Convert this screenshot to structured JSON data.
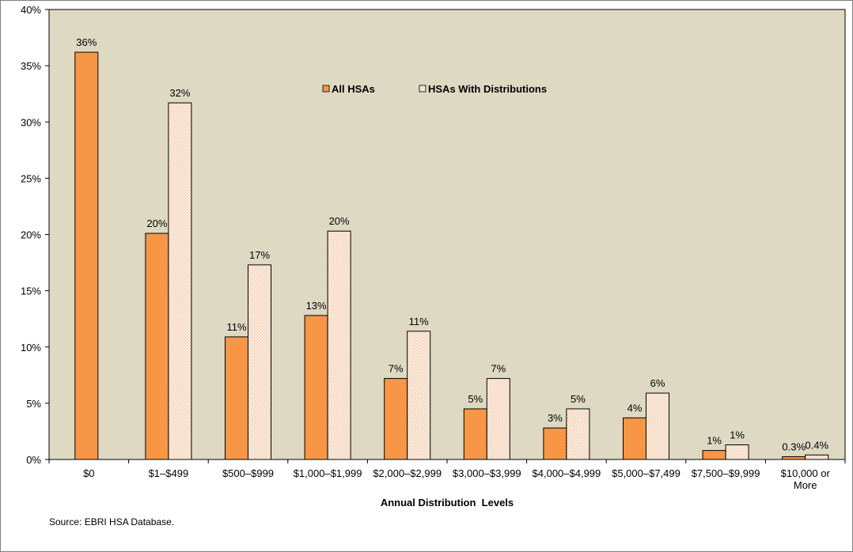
{
  "chart_data": {
    "type": "bar",
    "xlabel": "Annual Distribution  Levels",
    "ylabel": "",
    "ylim": [
      0,
      40
    ],
    "yticks": [
      "0%",
      "5%",
      "10%",
      "15%",
      "20%",
      "25%",
      "30%",
      "35%",
      "40%"
    ],
    "categories": [
      [
        "$0"
      ],
      [
        "$1–$499"
      ],
      [
        "$500–$999"
      ],
      [
        "$1,000–$1,999"
      ],
      [
        "$2,000–$2,999"
      ],
      [
        "$3,000–$3,999"
      ],
      [
        "$4,000–$4,999"
      ],
      [
        "$5,000–$7,499"
      ],
      [
        "$7,500–$9,999"
      ],
      [
        "$10,000 or",
        "More"
      ]
    ],
    "series": [
      {
        "name": "All HSAs",
        "color": "#f79646",
        "values": [
          36.2,
          20.1,
          10.9,
          12.8,
          7.2,
          4.5,
          2.8,
          3.7,
          0.8,
          0.25
        ],
        "labels": [
          "36%",
          "20%",
          "11%",
          "13%",
          "7%",
          "5%",
          "3%",
          "4%",
          "1%",
          "0.3%"
        ]
      },
      {
        "name": "HSAs With Distributions",
        "color": "#fbe5d6",
        "pattern": "dotted",
        "values": [
          null,
          31.7,
          17.3,
          20.3,
          11.4,
          7.2,
          4.5,
          5.9,
          1.3,
          0.4
        ],
        "labels": [
          "",
          "32%",
          "17%",
          "20%",
          "11%",
          "7%",
          "5%",
          "6%",
          "1%",
          "0.4%"
        ]
      }
    ],
    "legend_position": "top-center",
    "plot_background": "#ddd9c3",
    "grid": false
  },
  "source_note": "Source: EBRI HSA Database."
}
